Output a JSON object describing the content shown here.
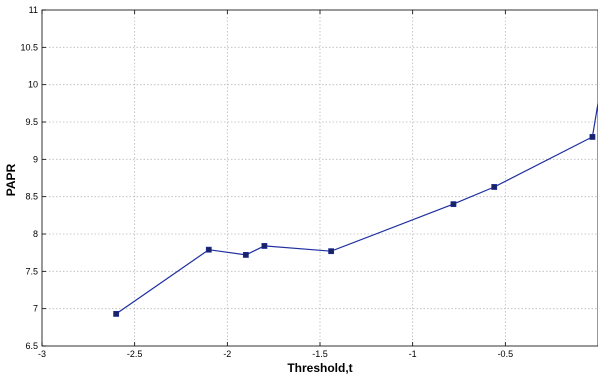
{
  "chart_data": {
    "type": "line",
    "title": "",
    "xlabel": "Threshold,t",
    "ylabel": "PAPR",
    "xlim": [
      -3,
      0
    ],
    "ylim": [
      6.5,
      11
    ],
    "xticks": [
      -3,
      -2.5,
      -2,
      -1.5,
      -1,
      -0.5
    ],
    "xtick_labels": [
      "-3",
      "-2.5",
      "-2",
      "-1.5",
      "-1",
      "-0.5"
    ],
    "yticks": [
      6.5,
      7,
      7.5,
      8,
      8.5,
      9,
      9.5,
      10,
      10.5,
      11
    ],
    "ytick_labels": [
      "6.5",
      "7",
      "7.5",
      "8",
      "8.5",
      "9",
      "9.5",
      "10",
      "10.5",
      "11"
    ],
    "grid": true,
    "series": [
      {
        "color": "#1f2fa0",
        "marker": "square",
        "x": [
          -2.6,
          -2.1,
          -1.9,
          -1.8,
          -1.44,
          -0.78,
          -0.56,
          -0.03,
          0.0
        ],
        "y": [
          6.93,
          7.79,
          7.72,
          7.84,
          7.77,
          8.4,
          8.63,
          9.3,
          9.75
        ]
      }
    ]
  }
}
